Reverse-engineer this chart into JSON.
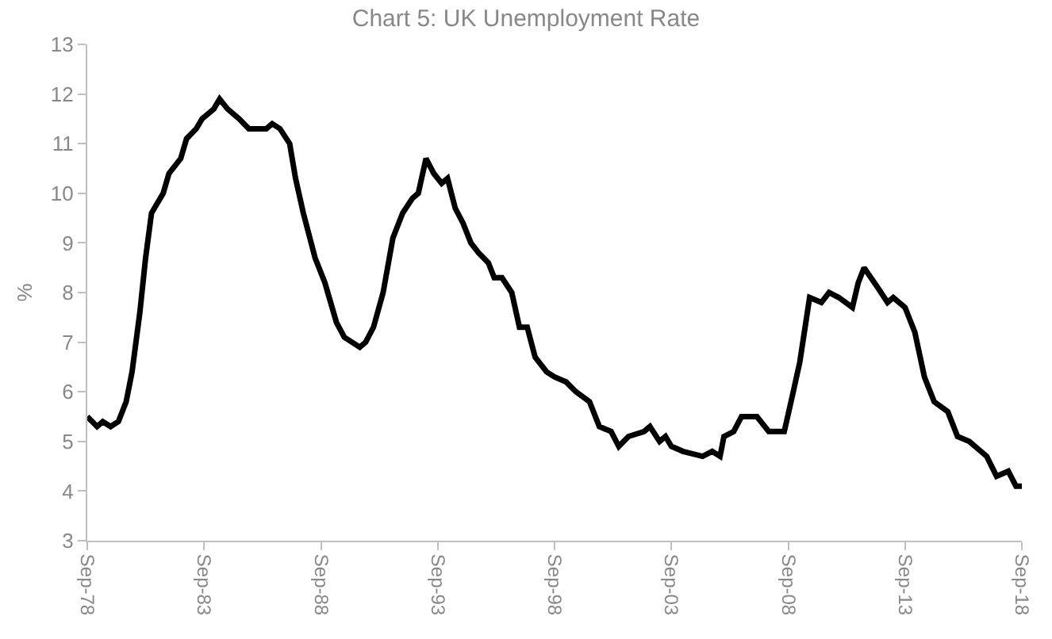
{
  "chart_data": {
    "type": "line",
    "title": "Chart 5: UK Unemployment Rate",
    "ylabel": "%",
    "x": [
      "1978-09",
      "1979-02",
      "1979-05",
      "1979-09",
      "1980-01",
      "1980-05",
      "1980-08",
      "1980-12",
      "1981-03",
      "1981-06",
      "1981-12",
      "1982-03",
      "1982-09",
      "1982-12",
      "1983-05",
      "1983-08",
      "1984-02",
      "1984-05",
      "1984-09",
      "1985-03",
      "1985-08",
      "1986-05",
      "1986-08",
      "1986-12",
      "1987-05",
      "1987-08",
      "1987-12",
      "1988-06",
      "1988-11",
      "1989-05",
      "1989-09",
      "1990-05",
      "1990-08",
      "1990-12",
      "1991-05",
      "1991-10",
      "1992-03",
      "1992-08",
      "1992-11",
      "1993-03",
      "1993-07",
      "1993-11",
      "1994-02",
      "1994-06",
      "1994-10",
      "1995-02",
      "1995-06",
      "1995-11",
      "1996-02",
      "1996-06",
      "1996-11",
      "1997-03",
      "1997-07",
      "1997-11",
      "1998-05",
      "1998-09",
      "1999-03",
      "1999-08",
      "2000-03",
      "2000-08",
      "2001-02",
      "2001-06",
      "2001-11",
      "2002-07",
      "2002-10",
      "2003-03",
      "2003-06",
      "2003-09",
      "2004-03",
      "2005-01",
      "2005-06",
      "2005-10",
      "2005-12",
      "2006-05",
      "2006-09",
      "2007-05",
      "2007-11",
      "2008-07",
      "2008-11",
      "2009-03",
      "2009-08",
      "2010-02",
      "2010-06",
      "2010-11",
      "2011-06",
      "2011-09",
      "2011-12",
      "2012-07",
      "2012-12",
      "2013-03",
      "2013-09",
      "2014-02",
      "2014-07",
      "2014-12",
      "2015-07",
      "2015-12",
      "2016-06",
      "2016-09",
      "2017-03",
      "2017-08",
      "2018-02",
      "2018-06",
      "2018-08",
      "2018-09"
    ],
    "series": [
      {
        "color": "#000000",
        "values": [
          5.5,
          5.3,
          5.4,
          5.3,
          5.4,
          5.8,
          6.4,
          7.6,
          8.7,
          9.6,
          10.0,
          10.4,
          10.7,
          11.1,
          11.3,
          11.5,
          11.7,
          11.9,
          11.7,
          11.5,
          11.3,
          11.3,
          11.4,
          11.3,
          11.0,
          10.3,
          9.6,
          8.7,
          8.2,
          7.4,
          7.1,
          6.9,
          7.0,
          7.3,
          8.0,
          9.1,
          9.6,
          9.9,
          10.0,
          10.7,
          10.4,
          10.2,
          10.3,
          9.7,
          9.4,
          9.0,
          8.8,
          8.6,
          8.3,
          8.3,
          8.0,
          7.3,
          7.3,
          6.7,
          6.4,
          6.3,
          6.2,
          6.0,
          5.8,
          5.3,
          5.2,
          4.9,
          5.1,
          5.2,
          5.3,
          5.0,
          5.1,
          4.9,
          4.8,
          4.7,
          4.8,
          4.7,
          5.1,
          5.2,
          5.5,
          5.5,
          5.2,
          5.2,
          5.9,
          6.6,
          7.9,
          7.8,
          8.0,
          7.9,
          7.7,
          8.2,
          8.5,
          8.1,
          7.8,
          7.9,
          7.7,
          7.2,
          6.3,
          5.8,
          5.6,
          5.1,
          5.0,
          4.9,
          4.7,
          4.3,
          4.4,
          4.1,
          4.1,
          4.1
        ]
      }
    ],
    "xlim": [
      "1978-09",
      "2018-09"
    ],
    "xticks": [
      {
        "value": "1978-09",
        "label": "Sep-78"
      },
      {
        "value": "1983-09",
        "label": "Sep-83"
      },
      {
        "value": "1988-09",
        "label": "Sep-88"
      },
      {
        "value": "1993-09",
        "label": "Sep-93"
      },
      {
        "value": "1998-09",
        "label": "Sep-98"
      },
      {
        "value": "2003-09",
        "label": "Sep-03"
      },
      {
        "value": "2008-09",
        "label": "Sep-08"
      },
      {
        "value": "2013-09",
        "label": "Sep-13"
      },
      {
        "value": "2018-09",
        "label": "Sep-18"
      }
    ],
    "ylim": [
      3,
      13
    ],
    "yticks": [
      3,
      4,
      5,
      6,
      7,
      8,
      9,
      10,
      11,
      12,
      13
    ],
    "grid": false,
    "line_style": "solid",
    "marker": "none"
  }
}
